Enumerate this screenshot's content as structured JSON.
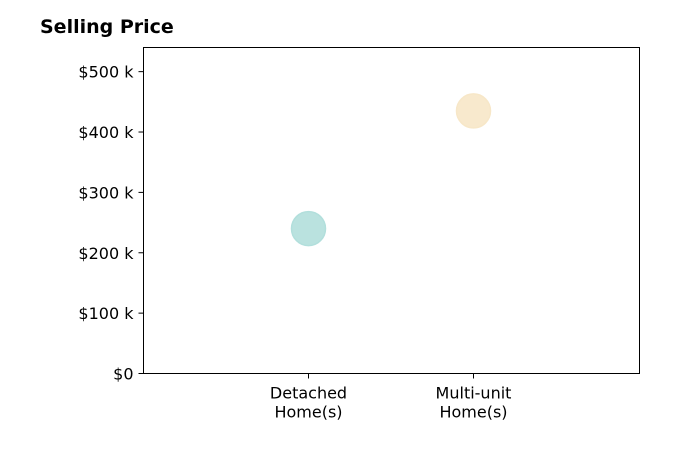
{
  "chart_data": {
    "type": "scatter",
    "title": "Selling Price",
    "xlabel": "",
    "ylabel": "",
    "categories": [
      "Detached|Home(s)",
      "Multi-unit|Home(s)"
    ],
    "points": [
      {
        "category": "Detached|Home(s)",
        "value": 240000,
        "color": "#b2dfdc"
      },
      {
        "category": "Multi-unit|Home(s)",
        "value": 435000,
        "color": "#f7e7c8"
      }
    ],
    "ylim": [
      0,
      540000
    ],
    "yticks": [
      0,
      100000,
      200000,
      300000,
      400000,
      500000
    ],
    "ytick_labels": [
      "$0",
      "$100 k",
      "$200 k",
      "$300 k",
      "$400 k",
      "$500 k"
    ],
    "grid": false,
    "legend": "none"
  }
}
